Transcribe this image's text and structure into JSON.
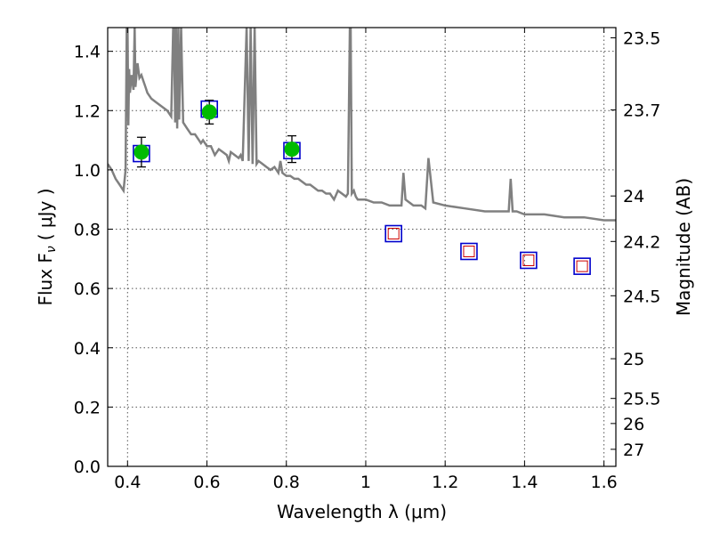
{
  "chart_data": {
    "type": "scatter",
    "xlabel": "Wavelength  λ (μm)",
    "ylabel": "Flux  F",
    "ylabel_sub": "ν",
    "ylabel_unit": "( μJy )",
    "y2label": "Magnitude (AB)",
    "xlim": [
      0.35,
      1.63
    ],
    "ylim": [
      0.0,
      1.48
    ],
    "grid": true,
    "x_ticks": [
      {
        "value": 0.4,
        "label": "0.4"
      },
      {
        "value": 0.6,
        "label": "0.6"
      },
      {
        "value": 0.8,
        "label": "0.8"
      },
      {
        "value": 1.0,
        "label": "1"
      },
      {
        "value": 1.2,
        "label": "1.2"
      },
      {
        "value": 1.4,
        "label": "1.4"
      },
      {
        "value": 1.6,
        "label": "1.6"
      }
    ],
    "y_ticks": [
      {
        "value": 0.0,
        "label": "0.0"
      },
      {
        "value": 0.2,
        "label": "0.2"
      },
      {
        "value": 0.4,
        "label": "0.4"
      },
      {
        "value": 0.6,
        "label": "0.6"
      },
      {
        "value": 0.8,
        "label": "0.8"
      },
      {
        "value": 1.0,
        "label": "1.0"
      },
      {
        "value": 1.2,
        "label": "1.2"
      },
      {
        "value": 1.4,
        "label": "1.4"
      }
    ],
    "y2_ticks": [
      {
        "value": 23.5,
        "label": "23.5"
      },
      {
        "value": 23.7,
        "label": "23.7"
      },
      {
        "value": 24.0,
        "label": "24"
      },
      {
        "value": 24.2,
        "label": "24.2"
      },
      {
        "value": 24.5,
        "label": "24.5"
      },
      {
        "value": 25.0,
        "label": "25"
      },
      {
        "value": 25.5,
        "label": "25.5"
      },
      {
        "value": 26.0,
        "label": "26"
      },
      {
        "value": 27.0,
        "label": "27"
      }
    ],
    "template_spectrum": {
      "color": "#808080",
      "x": [
        0.35,
        0.36,
        0.37,
        0.38,
        0.39,
        0.395,
        0.398,
        0.4,
        0.402,
        0.404,
        0.406,
        0.41,
        0.415,
        0.418,
        0.42,
        0.425,
        0.43,
        0.435,
        0.44,
        0.445,
        0.45,
        0.46,
        0.47,
        0.48,
        0.5,
        0.51,
        0.515,
        0.517,
        0.52,
        0.522,
        0.525,
        0.528,
        0.53,
        0.535,
        0.54,
        0.55,
        0.56,
        0.57,
        0.58,
        0.585,
        0.59,
        0.6,
        0.61,
        0.62,
        0.63,
        0.64,
        0.65,
        0.655,
        0.66,
        0.67,
        0.68,
        0.685,
        0.69,
        0.7,
        0.705,
        0.71,
        0.715,
        0.72,
        0.725,
        0.73,
        0.74,
        0.75,
        0.76,
        0.77,
        0.78,
        0.785,
        0.79,
        0.8,
        0.81,
        0.82,
        0.83,
        0.84,
        0.85,
        0.86,
        0.87,
        0.88,
        0.89,
        0.9,
        0.91,
        0.92,
        0.93,
        0.94,
        0.95,
        0.955,
        0.96,
        0.962,
        0.965,
        0.97,
        0.975,
        0.98,
        0.99,
        1.0,
        1.02,
        1.04,
        1.06,
        1.08,
        1.09,
        1.095,
        1.1,
        1.12,
        1.14,
        1.15,
        1.158,
        1.17,
        1.2,
        1.25,
        1.3,
        1.35,
        1.36,
        1.365,
        1.37,
        1.38,
        1.4,
        1.45,
        1.5,
        1.55,
        1.6,
        1.63
      ],
      "y": [
        1.02,
        1.0,
        0.97,
        0.95,
        0.93,
        1.0,
        1.48,
        1.48,
        1.15,
        1.34,
        1.26,
        1.32,
        1.27,
        1.48,
        1.28,
        1.36,
        1.31,
        1.32,
        1.3,
        1.28,
        1.26,
        1.24,
        1.23,
        1.22,
        1.2,
        1.18,
        1.48,
        1.48,
        1.16,
        1.48,
        1.14,
        1.48,
        1.17,
        1.48,
        1.16,
        1.14,
        1.12,
        1.12,
        1.1,
        1.09,
        1.1,
        1.08,
        1.08,
        1.05,
        1.07,
        1.06,
        1.05,
        1.03,
        1.06,
        1.05,
        1.04,
        1.05,
        1.03,
        1.48,
        1.03,
        1.48,
        1.02,
        1.48,
        1.02,
        1.03,
        1.02,
        1.01,
        1.0,
        1.01,
        0.99,
        1.03,
        0.99,
        0.98,
        0.98,
        0.97,
        0.97,
        0.96,
        0.95,
        0.95,
        0.94,
        0.93,
        0.93,
        0.92,
        0.92,
        0.9,
        0.93,
        0.92,
        0.91,
        0.92,
        1.48,
        1.48,
        0.92,
        0.93,
        0.91,
        0.9,
        0.9,
        0.9,
        0.89,
        0.89,
        0.88,
        0.88,
        0.88,
        0.99,
        0.9,
        0.88,
        0.88,
        0.87,
        1.04,
        0.89,
        0.88,
        0.87,
        0.86,
        0.86,
        0.86,
        0.97,
        0.86,
        0.86,
        0.85,
        0.85,
        0.84,
        0.84,
        0.83,
        0.83
      ]
    },
    "observed_photometry": {
      "marker_color": "#00bb00",
      "points": [
        {
          "x": 0.435,
          "y": 1.06,
          "yerr": 0.05
        },
        {
          "x": 0.606,
          "y": 1.195,
          "yerr": 0.04
        },
        {
          "x": 0.814,
          "y": 1.07,
          "yerr": 0.045
        }
      ]
    },
    "model_photometry": {
      "edge_color": "#0000cc",
      "x": [
        0.435,
        0.606,
        0.814,
        1.07,
        1.26,
        1.41,
        1.545
      ],
      "y": [
        1.055,
        1.205,
        1.065,
        0.785,
        0.725,
        0.695,
        0.675
      ]
    },
    "upper_points": {
      "edge_color": "#cc0000",
      "x": [
        1.07,
        1.26,
        1.41,
        1.545
      ],
      "y": [
        0.785,
        0.725,
        0.695,
        0.675
      ]
    }
  }
}
